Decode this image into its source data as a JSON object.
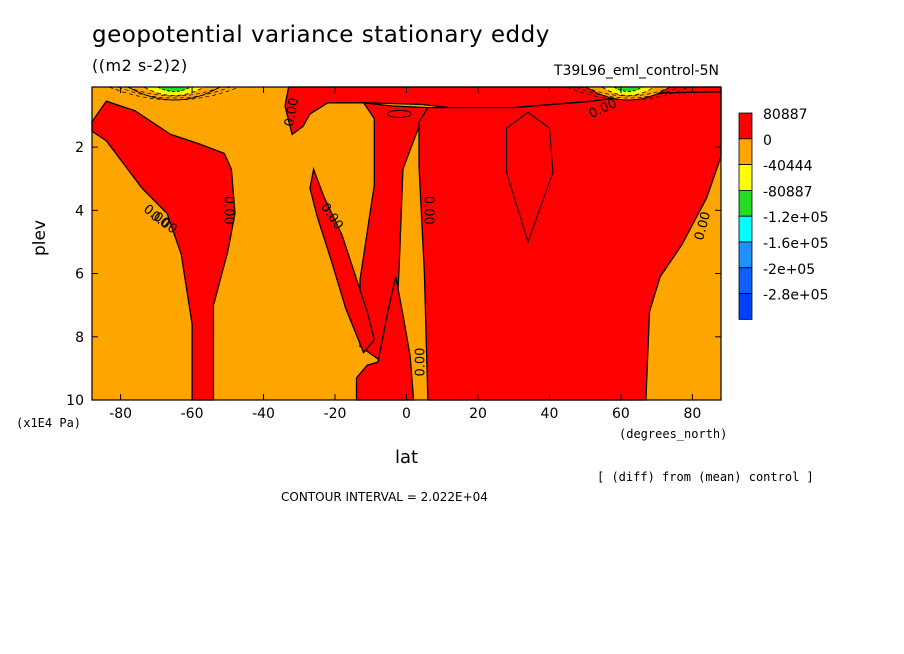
{
  "chart_data": {
    "type": "contour",
    "title": "geopotential variance stationary eddy",
    "units": "((m2 s-2)2)",
    "run_label": "T39L96_eml_control-5N",
    "xlabel": "lat",
    "x_units": "(degrees_north)",
    "ylabel": "plev",
    "y_units": "(x1E4 Pa)",
    "xlim": [
      -88,
      88
    ],
    "ylim": [
      0.1,
      10
    ],
    "y_inverted": true,
    "x_ticks": [
      -80,
      -60,
      -40,
      -20,
      0,
      20,
      40,
      60,
      80
    ],
    "y_ticks": [
      2,
      4,
      6,
      8,
      10
    ],
    "contour_interval": "CONTOUR INTERVAL = 2.022E+04",
    "note": "[ (diff) from (mean) control ]",
    "contour_labels": [
      "0.00",
      "0.00",
      "0.00",
      "0.00",
      "0.00",
      "0.00",
      "0.00",
      "0.00",
      "0.00"
    ],
    "legend": [
      {
        "label": "80887",
        "color": "#ff0000"
      },
      {
        "label": "0",
        "color": "#ffa500"
      },
      {
        "label": "-40444",
        "color": "#ffff00"
      },
      {
        "label": "-80887",
        "color": "#22dd22"
      },
      {
        "label": "-1.2e+05",
        "color": "#00ffff"
      },
      {
        "label": "-1.6e+05",
        "color": "#1e90ff"
      },
      {
        "label": "-2e+05",
        "color": "#1060ff"
      },
      {
        "label": "-2.8e+05",
        "color": "#0040ff"
      }
    ],
    "regions": [
      {
        "name": "red-band-west",
        "value": "positive",
        "boundary": [
          [
            -88,
            1.2
          ],
          [
            -84,
            0.55
          ],
          [
            -76,
            0.85
          ],
          [
            -66,
            1.6
          ],
          [
            -58,
            1.9
          ],
          [
            -51,
            2.2
          ],
          [
            -49,
            2.7
          ],
          [
            -48,
            4.1
          ],
          [
            -50,
            5.3
          ],
          [
            -54,
            7.0
          ],
          [
            -54,
            10
          ],
          [
            -60,
            10
          ],
          [
            -60,
            7.6
          ],
          [
            -63,
            5.4
          ],
          [
            -67,
            4.1
          ],
          [
            -74,
            3.3
          ],
          [
            -84,
            1.8
          ],
          [
            -88,
            1.5
          ]
        ]
      },
      {
        "name": "red-north-cap",
        "value": "positive",
        "boundary": [
          [
            -33,
            0.1
          ],
          [
            88,
            0.1
          ],
          [
            88,
            0.25
          ],
          [
            68,
            0.3
          ],
          [
            52,
            0.55
          ],
          [
            30,
            0.75
          ],
          [
            12,
            0.75
          ],
          [
            4,
            0.65
          ],
          [
            -12,
            0.6
          ],
          [
            -22,
            0.6
          ],
          [
            -27,
            0.95
          ],
          [
            -29,
            1.35
          ],
          [
            -32,
            1.6
          ],
          [
            -34,
            0.7
          ]
        ]
      },
      {
        "name": "red-south-arm",
        "value": "positive",
        "boundary": [
          [
            -12,
            0.6
          ],
          [
            -9,
            1.1
          ],
          [
            -9,
            3.2
          ],
          [
            -13,
            6.2
          ],
          [
            -13,
            8.3
          ],
          [
            -8,
            8.7
          ],
          [
            -3,
            8.0
          ],
          [
            -2,
            5.6
          ],
          [
            -1,
            2.7
          ],
          [
            4,
            1.2
          ],
          [
            6,
            0.75
          ],
          [
            -4,
            0.7
          ]
        ]
      },
      {
        "name": "red-east-main",
        "value": "positive",
        "boundary": [
          [
            6,
            0.75
          ],
          [
            30,
            0.75
          ],
          [
            52,
            0.55
          ],
          [
            68,
            0.3
          ],
          [
            88,
            0.25
          ],
          [
            88,
            2.3
          ],
          [
            84,
            3.6
          ],
          [
            77,
            5.1
          ],
          [
            71,
            6.1
          ],
          [
            68,
            7.2
          ],
          [
            67,
            10
          ],
          [
            6,
            10
          ],
          [
            5,
            6.0
          ],
          [
            3.5,
            2.6
          ],
          [
            3.5,
            1.2
          ]
        ]
      },
      {
        "name": "red-tongue",
        "value": "positive",
        "boundary": [
          [
            -26,
            2.7
          ],
          [
            -23,
            3.6
          ],
          [
            -18,
            4.8
          ],
          [
            -11,
            7.2
          ],
          [
            -9,
            8.1
          ],
          [
            -12,
            8.5
          ],
          [
            -17,
            7.1
          ],
          [
            -21,
            5.6
          ],
          [
            -25,
            4.2
          ],
          [
            -27,
            3.3
          ]
        ]
      },
      {
        "name": "red-base",
        "value": "positive",
        "boundary": [
          [
            -14,
            10
          ],
          [
            -14,
            9.3
          ],
          [
            -11,
            8.9
          ],
          [
            -8,
            8.8
          ],
          [
            -5,
            7.1
          ],
          [
            -3,
            6.1
          ],
          [
            -1,
            7.3
          ],
          [
            1,
            8.6
          ],
          [
            2,
            10
          ]
        ]
      }
    ]
  }
}
